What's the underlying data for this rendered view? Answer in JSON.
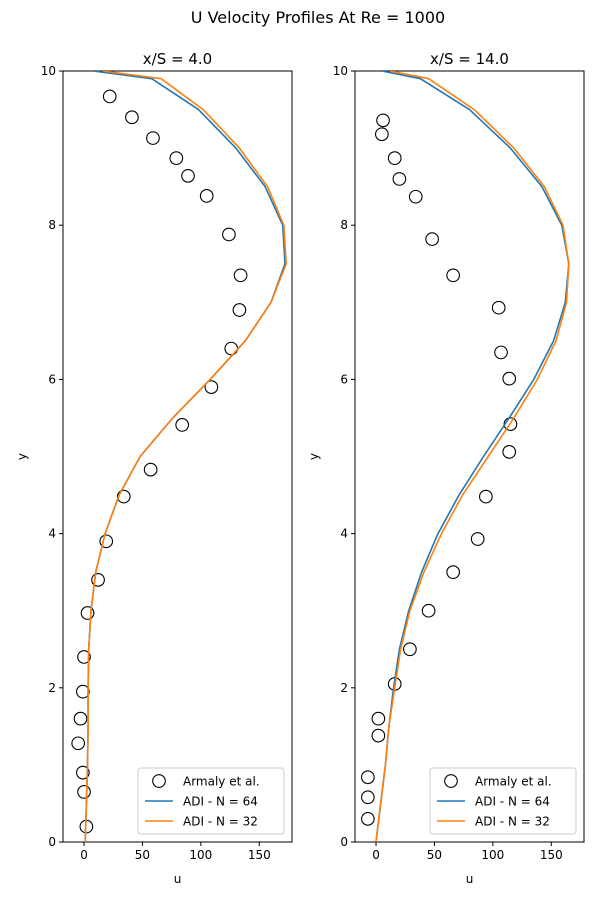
{
  "figure": {
    "suptitle": "U Velocity Profiles At Re = 1000"
  },
  "colors": {
    "series_64": "#1f77b4",
    "series_32": "#ff7f0e",
    "markers": "#000000"
  },
  "legend_labels": [
    "Armaly et al.",
    "ADI - N = 64",
    "ADI - N = 32"
  ],
  "chart_data": [
    {
      "type": "line",
      "title": "x/S = 4.0",
      "xlabel": "u",
      "ylabel": "y",
      "xlim": [
        -18,
        178
      ],
      "ylim": [
        0,
        10
      ],
      "xticks": [
        0,
        50,
        100,
        150
      ],
      "yticks": [
        0,
        2,
        4,
        6,
        8,
        10
      ],
      "legend_position": "lower right",
      "series": [
        {
          "name": "Armaly et al.",
          "style": "scatter",
          "points": [
            [
              2,
              0.2
            ],
            [
              0,
              0.65
            ],
            [
              -1,
              0.9
            ],
            [
              -5,
              1.28
            ],
            [
              -3,
              1.6
            ],
            [
              -1,
              1.95
            ],
            [
              0,
              2.4
            ],
            [
              3,
              2.97
            ],
            [
              12,
              3.4
            ],
            [
              19,
              3.9
            ],
            [
              34,
              4.48
            ],
            [
              57,
              4.83
            ],
            [
              84,
              5.41
            ],
            [
              109,
              5.9
            ],
            [
              126,
              6.4
            ],
            [
              133,
              6.9
            ],
            [
              134,
              7.35
            ],
            [
              124,
              7.88
            ],
            [
              105,
              8.38
            ],
            [
              89,
              8.64
            ],
            [
              79,
              8.87
            ],
            [
              59,
              9.13
            ],
            [
              41,
              9.4
            ],
            [
              22,
              9.67
            ]
          ]
        },
        {
          "name": "ADI - N = 64",
          "style": "line",
          "points": [
            [
              1,
              0
            ],
            [
              2,
              0.5
            ],
            [
              3,
              1
            ],
            [
              3.5,
              1.5
            ],
            [
              3.5,
              2
            ],
            [
              4,
              2.5
            ],
            [
              6,
              3
            ],
            [
              10,
              3.5
            ],
            [
              18,
              4
            ],
            [
              30,
              4.5
            ],
            [
              48,
              5
            ],
            [
              76,
              5.5
            ],
            [
              108,
              6
            ],
            [
              138,
              6.5
            ],
            [
              160,
              7
            ],
            [
              172,
              7.5
            ],
            [
              170,
              8
            ],
            [
              155,
              8.5
            ],
            [
              130,
              9
            ],
            [
              98,
              9.5
            ],
            [
              58,
              9.9
            ],
            [
              8,
              10
            ]
          ]
        },
        {
          "name": "ADI - N = 32",
          "style": "line",
          "points": [
            [
              1,
              0
            ],
            [
              2,
              0.5
            ],
            [
              3,
              1
            ],
            [
              3.5,
              1.5
            ],
            [
              3.5,
              2
            ],
            [
              4,
              2.5
            ],
            [
              6,
              3
            ],
            [
              10,
              3.5
            ],
            [
              18,
              4
            ],
            [
              30,
              4.5
            ],
            [
              48,
              5
            ],
            [
              76,
              5.5
            ],
            [
              108,
              6
            ],
            [
              138,
              6.5
            ],
            [
              160,
              7
            ],
            [
              173,
              7.5
            ],
            [
              171,
              8
            ],
            [
              157,
              8.5
            ],
            [
              133,
              9
            ],
            [
              102,
              9.5
            ],
            [
              66,
              9.9
            ],
            [
              16,
              10
            ]
          ]
        }
      ]
    },
    {
      "type": "line",
      "title": "x/S = 14.0",
      "xlabel": "u",
      "ylabel": "y",
      "xlim": [
        -18,
        178
      ],
      "ylim": [
        0,
        10
      ],
      "xticks": [
        0,
        50,
        100,
        150
      ],
      "yticks": [
        0,
        2,
        4,
        6,
        8,
        10
      ],
      "legend_position": "lower right",
      "series": [
        {
          "name": "Armaly et al.",
          "style": "scatter",
          "points": [
            [
              -7,
              0.3
            ],
            [
              -7,
              0.58
            ],
            [
              -7,
              0.84
            ],
            [
              2,
              1.38
            ],
            [
              2,
              1.6
            ],
            [
              16,
              2.05
            ],
            [
              29,
              2.5
            ],
            [
              45,
              3.0
            ],
            [
              66,
              3.5
            ],
            [
              87,
              3.93
            ],
            [
              94,
              4.48
            ],
            [
              114,
              5.06
            ],
            [
              115,
              5.42
            ],
            [
              114,
              6.01
            ],
            [
              107,
              6.35
            ],
            [
              105,
              6.93
            ],
            [
              66,
              7.35
            ],
            [
              48,
              7.82
            ],
            [
              34,
              8.37
            ],
            [
              20,
              8.6
            ],
            [
              16,
              8.87
            ],
            [
              5,
              9.18
            ],
            [
              6,
              9.36
            ]
          ]
        },
        {
          "name": "ADI - N = 64",
          "style": "line",
          "points": [
            [
              0,
              0
            ],
            [
              4,
              0.5
            ],
            [
              8,
              1
            ],
            [
              11,
              1.5
            ],
            [
              15,
              2
            ],
            [
              20,
              2.5
            ],
            [
              28,
              3
            ],
            [
              39,
              3.5
            ],
            [
              53,
              4
            ],
            [
              71,
              4.5
            ],
            [
              92,
              5
            ],
            [
              114,
              5.5
            ],
            [
              135,
              6
            ],
            [
              152,
              6.5
            ],
            [
              162,
              7
            ],
            [
              165,
              7.5
            ],
            [
              159,
              8
            ],
            [
              142,
              8.5
            ],
            [
              115,
              9
            ],
            [
              80,
              9.5
            ],
            [
              38,
              9.9
            ],
            [
              5,
              10
            ]
          ]
        },
        {
          "name": "ADI - N = 32",
          "style": "line",
          "points": [
            [
              0,
              0
            ],
            [
              4,
              0.5
            ],
            [
              8,
              1
            ],
            [
              11,
              1.5
            ],
            [
              16,
              2
            ],
            [
              21,
              2.5
            ],
            [
              29,
              3
            ],
            [
              41,
              3.5
            ],
            [
              56,
              4
            ],
            [
              74,
              4.5
            ],
            [
              96,
              5
            ],
            [
              118,
              5.5
            ],
            [
              138,
              6
            ],
            [
              154,
              6.5
            ],
            [
              163,
              7
            ],
            [
              165,
              7.5
            ],
            [
              160,
              8
            ],
            [
              144,
              8.5
            ],
            [
              118,
              9
            ],
            [
              84,
              9.5
            ],
            [
              45,
              9.9
            ],
            [
              12,
              10
            ]
          ]
        }
      ]
    }
  ]
}
